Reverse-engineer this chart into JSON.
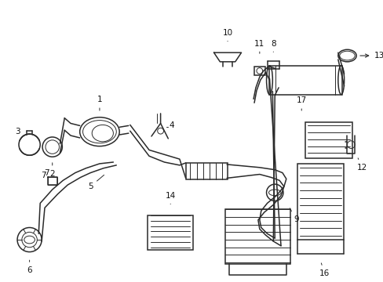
{
  "bg_color": "#ffffff",
  "line_color": "#2a2a2a",
  "figsize": [
    4.89,
    3.6
  ],
  "dpi": 100,
  "xlim": [
    0,
    489
  ],
  "ylim": [
    0,
    360
  ]
}
